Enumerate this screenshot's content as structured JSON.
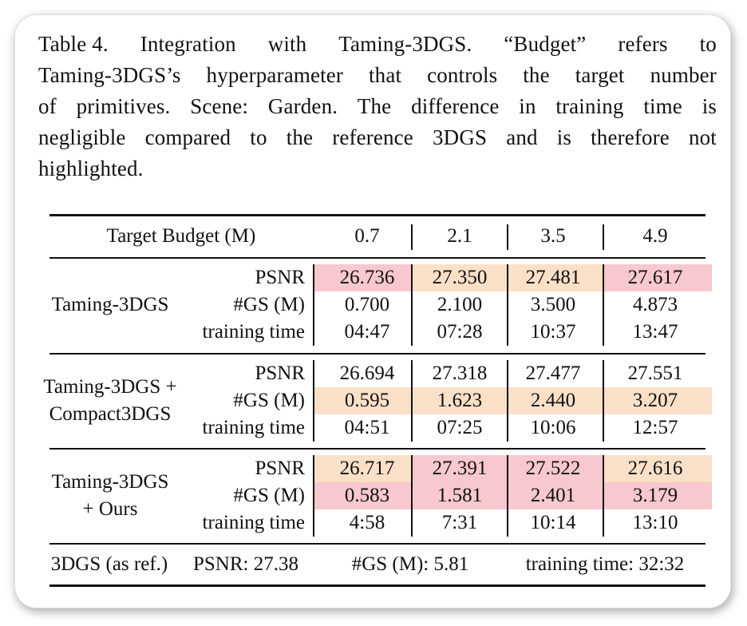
{
  "caption": {
    "lines": [
      [
        "Table 4.",
        "Integration",
        "with",
        "Taming-3DGS.",
        "“Budget”",
        "refers",
        "to"
      ],
      [
        "Taming-3DGS’s",
        "hyperparameter",
        "that",
        "controls",
        "the",
        "target",
        "number"
      ],
      [
        "of",
        "primitives.",
        "Scene:",
        "Garden.",
        "The",
        "difference",
        "in",
        "training",
        "time",
        "is"
      ],
      [
        "negligible",
        "compared",
        "to",
        "the",
        "reference",
        "3DGS",
        "and",
        "is",
        "therefore",
        "not"
      ],
      "highlighted."
    ]
  },
  "table": {
    "header_label": "Target Budget (M)",
    "budgets": [
      "0.7",
      "2.1",
      "3.5",
      "4.9"
    ],
    "groups": [
      {
        "method_lines": [
          "Taming-3DGS"
        ],
        "metrics": [
          "PSNR",
          "#GS (M)",
          "training time"
        ],
        "values": [
          [
            "26.736",
            "27.350",
            "27.481",
            "27.617"
          ],
          [
            "0.700",
            "2.100",
            "3.500",
            "4.873"
          ],
          [
            "04:47",
            "07:28",
            "10:37",
            "13:47"
          ]
        ]
      },
      {
        "method_lines": [
          "Taming-3DGS +",
          "Compact3DGS"
        ],
        "metrics": [
          "PSNR",
          "#GS (M)",
          "training time"
        ],
        "values": [
          [
            "26.694",
            "27.318",
            "27.477",
            "27.551"
          ],
          [
            "0.595",
            "1.623",
            "2.440",
            "3.207"
          ],
          [
            "04:51",
            "07:25",
            "10:06",
            "12:57"
          ]
        ]
      },
      {
        "method_lines": [
          "Taming-3DGS",
          "+ Ours"
        ],
        "metrics": [
          "PSNR",
          "#GS (M)",
          "training time"
        ],
        "values": [
          [
            "26.717",
            "27.391",
            "27.522",
            "27.616"
          ],
          [
            "0.583",
            "1.581",
            "2.401",
            "3.179"
          ],
          [
            "4:58",
            "7:31",
            "10:14",
            "13:10"
          ]
        ]
      }
    ],
    "highlights": [
      {
        "group": 0,
        "row": 0,
        "col": 0,
        "color": "pink"
      },
      {
        "group": 0,
        "row": 0,
        "col": 1,
        "color": "peach"
      },
      {
        "group": 0,
        "row": 0,
        "col": 2,
        "color": "peach"
      },
      {
        "group": 0,
        "row": 0,
        "col": 3,
        "color": "pink"
      },
      {
        "group": 1,
        "row": 1,
        "col": 0,
        "color": "peach"
      },
      {
        "group": 1,
        "row": 1,
        "col": 1,
        "color": "peach"
      },
      {
        "group": 1,
        "row": 1,
        "col": 2,
        "color": "peach"
      },
      {
        "group": 1,
        "row": 1,
        "col": 3,
        "color": "peach"
      },
      {
        "group": 2,
        "row": 0,
        "col": 0,
        "color": "peach"
      },
      {
        "group": 2,
        "row": 0,
        "col": 1,
        "color": "pink"
      },
      {
        "group": 2,
        "row": 0,
        "col": 2,
        "color": "pink"
      },
      {
        "group": 2,
        "row": 0,
        "col": 3,
        "color": "peach"
      },
      {
        "group": 2,
        "row": 1,
        "col": 0,
        "color": "pink"
      },
      {
        "group": 2,
        "row": 1,
        "col": 1,
        "color": "pink"
      },
      {
        "group": 2,
        "row": 1,
        "col": 2,
        "color": "pink"
      },
      {
        "group": 2,
        "row": 1,
        "col": 3,
        "color": "pink"
      }
    ],
    "reference": {
      "label": "3DGS (as ref.)",
      "psnr": "PSNR: 27.38",
      "gs": "#GS (M): 5.81",
      "time": "training time: 32:32"
    }
  },
  "colors": {
    "pink": "#f7c8cd",
    "peach": "#fbe0c8",
    "rule": "#111111"
  }
}
